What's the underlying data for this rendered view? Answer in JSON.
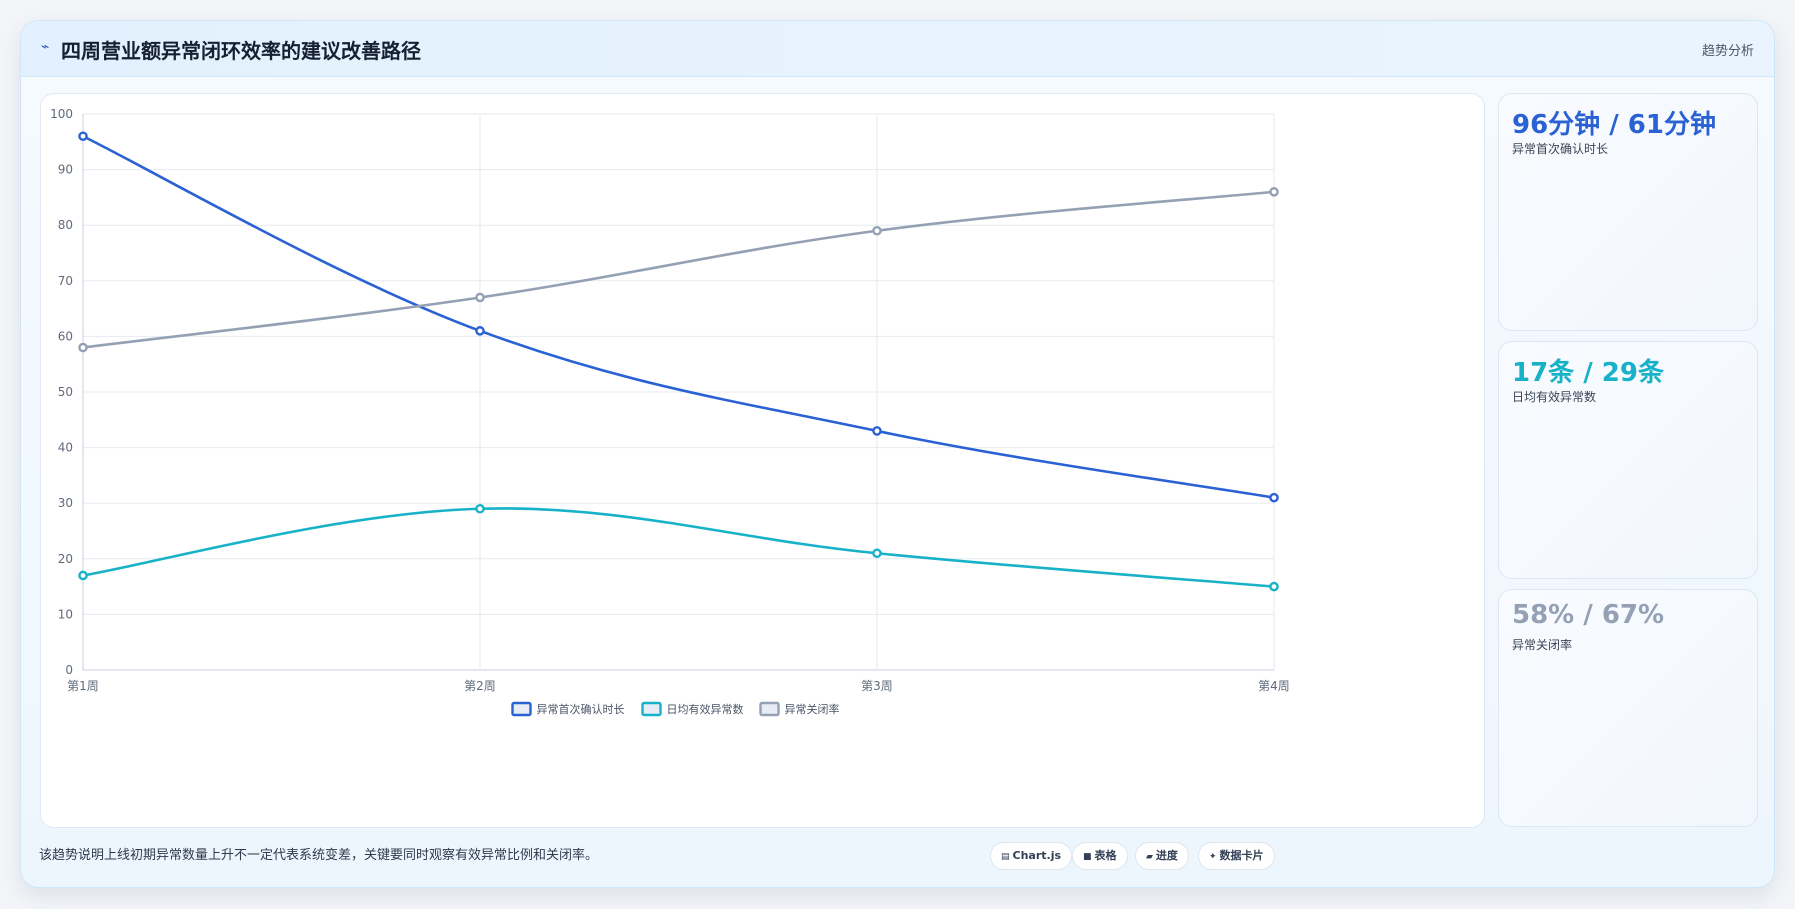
{
  "header": {
    "title_icon": "trend-line-icon",
    "title": "四周营业额异常闭环效率的建议改善路径",
    "tag": "趋势分析"
  },
  "chart_data": {
    "type": "line",
    "categories": [
      "第1周",
      "第2周",
      "第3周",
      "第4周"
    ],
    "ylim": [
      0,
      100
    ],
    "yticks": [
      0,
      10,
      20,
      30,
      40,
      50,
      60,
      70,
      80,
      90,
      100
    ],
    "grid": true,
    "legend_placement": "bottom",
    "series": [
      {
        "name": "异常首次确认时长",
        "color": "#2a62d4",
        "values": [
          96,
          61,
          43,
          31
        ]
      },
      {
        "name": "日均有效异常数",
        "color": "#17b2c8",
        "values": [
          17,
          29,
          21,
          15
        ]
      },
      {
        "name": "异常关闭率",
        "color": "#94a0b4",
        "values": [
          58,
          67,
          79,
          86
        ]
      }
    ]
  },
  "stats": [
    {
      "value": "96分钟 / 61分钟",
      "label": "异常首次确认时长",
      "color": "#2a62d4"
    },
    {
      "value": "17条 / 29条",
      "label": "日均有效异常数",
      "color": "#17b2c8"
    },
    {
      "value": "58% / 67%",
      "label": "异常关闭率",
      "color": "#94a0b4"
    }
  ],
  "footer": {
    "note": "该趋势说明上线初期异常数量上升不一定代表系统变差，关键要同时观察有效异常比例和关闭率。",
    "chips": [
      {
        "icon": "▤",
        "icon_name": "chart-icon",
        "label": "Chart.js"
      },
      {
        "icon": "■",
        "icon_name": "table-icon",
        "label": "表格"
      },
      {
        "icon": "▰",
        "icon_name": "progress-icon",
        "label": "进度"
      },
      {
        "icon": "✦",
        "icon_name": "sparkle-icon",
        "label": "数据卡片"
      }
    ]
  }
}
